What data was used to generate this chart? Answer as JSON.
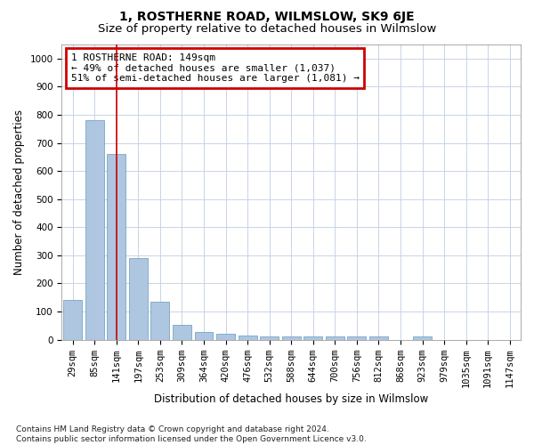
{
  "title": "1, ROSTHERNE ROAD, WILMSLOW, SK9 6JE",
  "subtitle": "Size of property relative to detached houses in Wilmslow",
  "xlabel": "Distribution of detached houses by size in Wilmslow",
  "ylabel": "Number of detached properties",
  "bar_labels": [
    "29sqm",
    "85sqm",
    "141sqm",
    "197sqm",
    "253sqm",
    "309sqm",
    "364sqm",
    "420sqm",
    "476sqm",
    "532sqm",
    "588sqm",
    "644sqm",
    "700sqm",
    "756sqm",
    "812sqm",
    "868sqm",
    "923sqm",
    "979sqm",
    "1035sqm",
    "1091sqm",
    "1147sqm"
  ],
  "bar_values": [
    140,
    780,
    660,
    290,
    135,
    52,
    28,
    20,
    14,
    10,
    10,
    10,
    10,
    12,
    10,
    0,
    10,
    0,
    0,
    0,
    0
  ],
  "bar_color": "#aec6e0",
  "bar_edge_color": "#6699bb",
  "vline_x": 2,
  "vline_color": "#cc0000",
  "ylim": [
    0,
    1050
  ],
  "yticks": [
    0,
    100,
    200,
    300,
    400,
    500,
    600,
    700,
    800,
    900,
    1000
  ],
  "annotation_text": "1 ROSTHERNE ROAD: 149sqm\n← 49% of detached houses are smaller (1,037)\n51% of semi-detached houses are larger (1,081) →",
  "annotation_box_edgecolor": "#cc0000",
  "footer_line1": "Contains HM Land Registry data © Crown copyright and database right 2024.",
  "footer_line2": "Contains public sector information licensed under the Open Government Licence v3.0.",
  "bg_color": "#ffffff",
  "grid_color": "#c8d4e8",
  "title_fontsize": 10,
  "subtitle_fontsize": 9.5,
  "axis_label_fontsize": 8.5,
  "tick_fontsize": 7.5,
  "annotation_fontsize": 8,
  "footer_fontsize": 6.5
}
